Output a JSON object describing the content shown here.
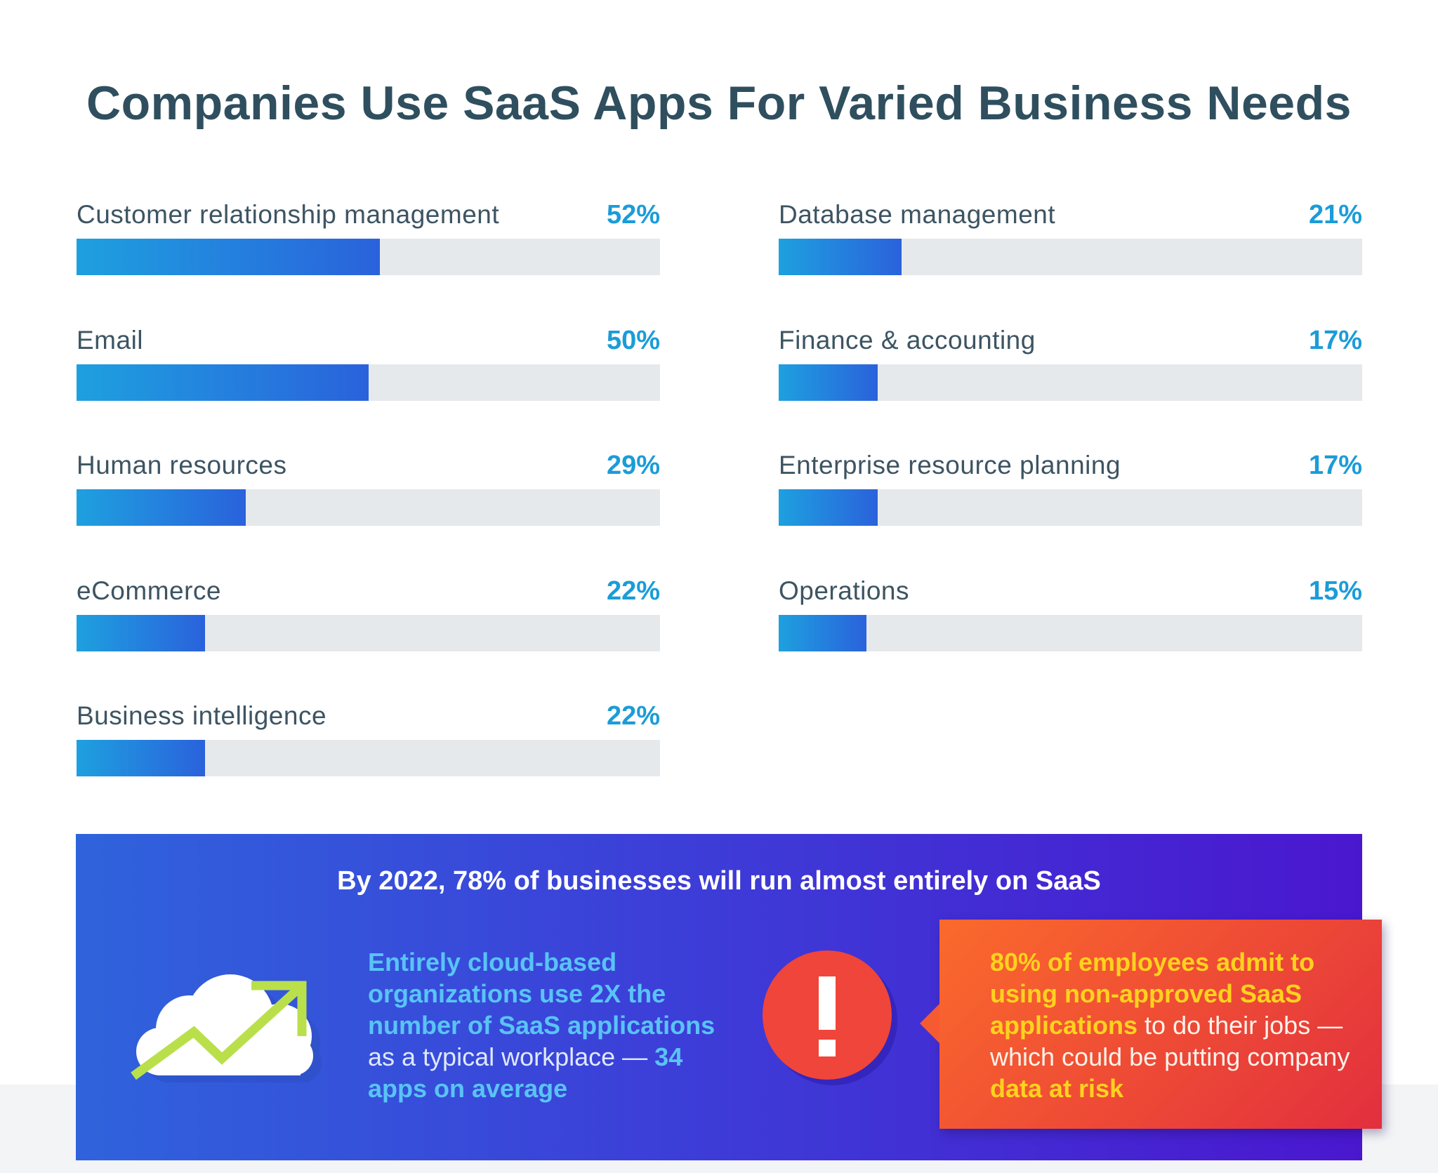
{
  "title": "Companies Use SaaS Apps For Varied Business Needs",
  "colors": {
    "bar_start": "#1ea0df",
    "bar_end": "#2a62dc",
    "track": "#e6e9ec",
    "value_text": "#1b9cd8",
    "title_text": "#2f4f5f",
    "panel_start": "#2f63dc",
    "panel_end": "#4a17cf",
    "callout_start": "#fb6a2c",
    "callout_end": "#e22f3e",
    "highlight_blue": "#59c4f6",
    "highlight_yellow": "#ffd21e",
    "trend_arrow": "#b9e04b"
  },
  "chart_data": {
    "type": "bar",
    "orientation": "horizontal",
    "title": "Companies Use SaaS Apps For Varied Business Needs",
    "unit": "%",
    "xlim": [
      0,
      100
    ],
    "categories": [
      "Customer relationship management",
      "Email",
      "Human resources",
      "eCommerce",
      "Business intelligence",
      "Database management",
      "Finance & accounting",
      "Enterprise resource planning",
      "Operations"
    ],
    "values": [
      52,
      50,
      29,
      22,
      22,
      21,
      17,
      17,
      15
    ],
    "value_labels": [
      "52%",
      "50%",
      "29%",
      "22%",
      "22%",
      "21%",
      "17%",
      "17%",
      "15%"
    ]
  },
  "panel": {
    "heading": "By 2022, 78% of businesses will run almost entirely on SaaS",
    "cloud_icon": "cloud-trend-icon",
    "stat": {
      "highlight": "Entirely cloud-based organizations use 2X the number of SaaS applications",
      "middle": " as a typical workplace — ",
      "highlight_end": "34 apps on average"
    },
    "alert_icon": "exclamation-icon",
    "callout": {
      "highlight": "80% of employees admit to using non-approved SaaS applications",
      "middle": " to do their jobs — which could be putting company ",
      "highlight_end": "data at risk"
    }
  }
}
